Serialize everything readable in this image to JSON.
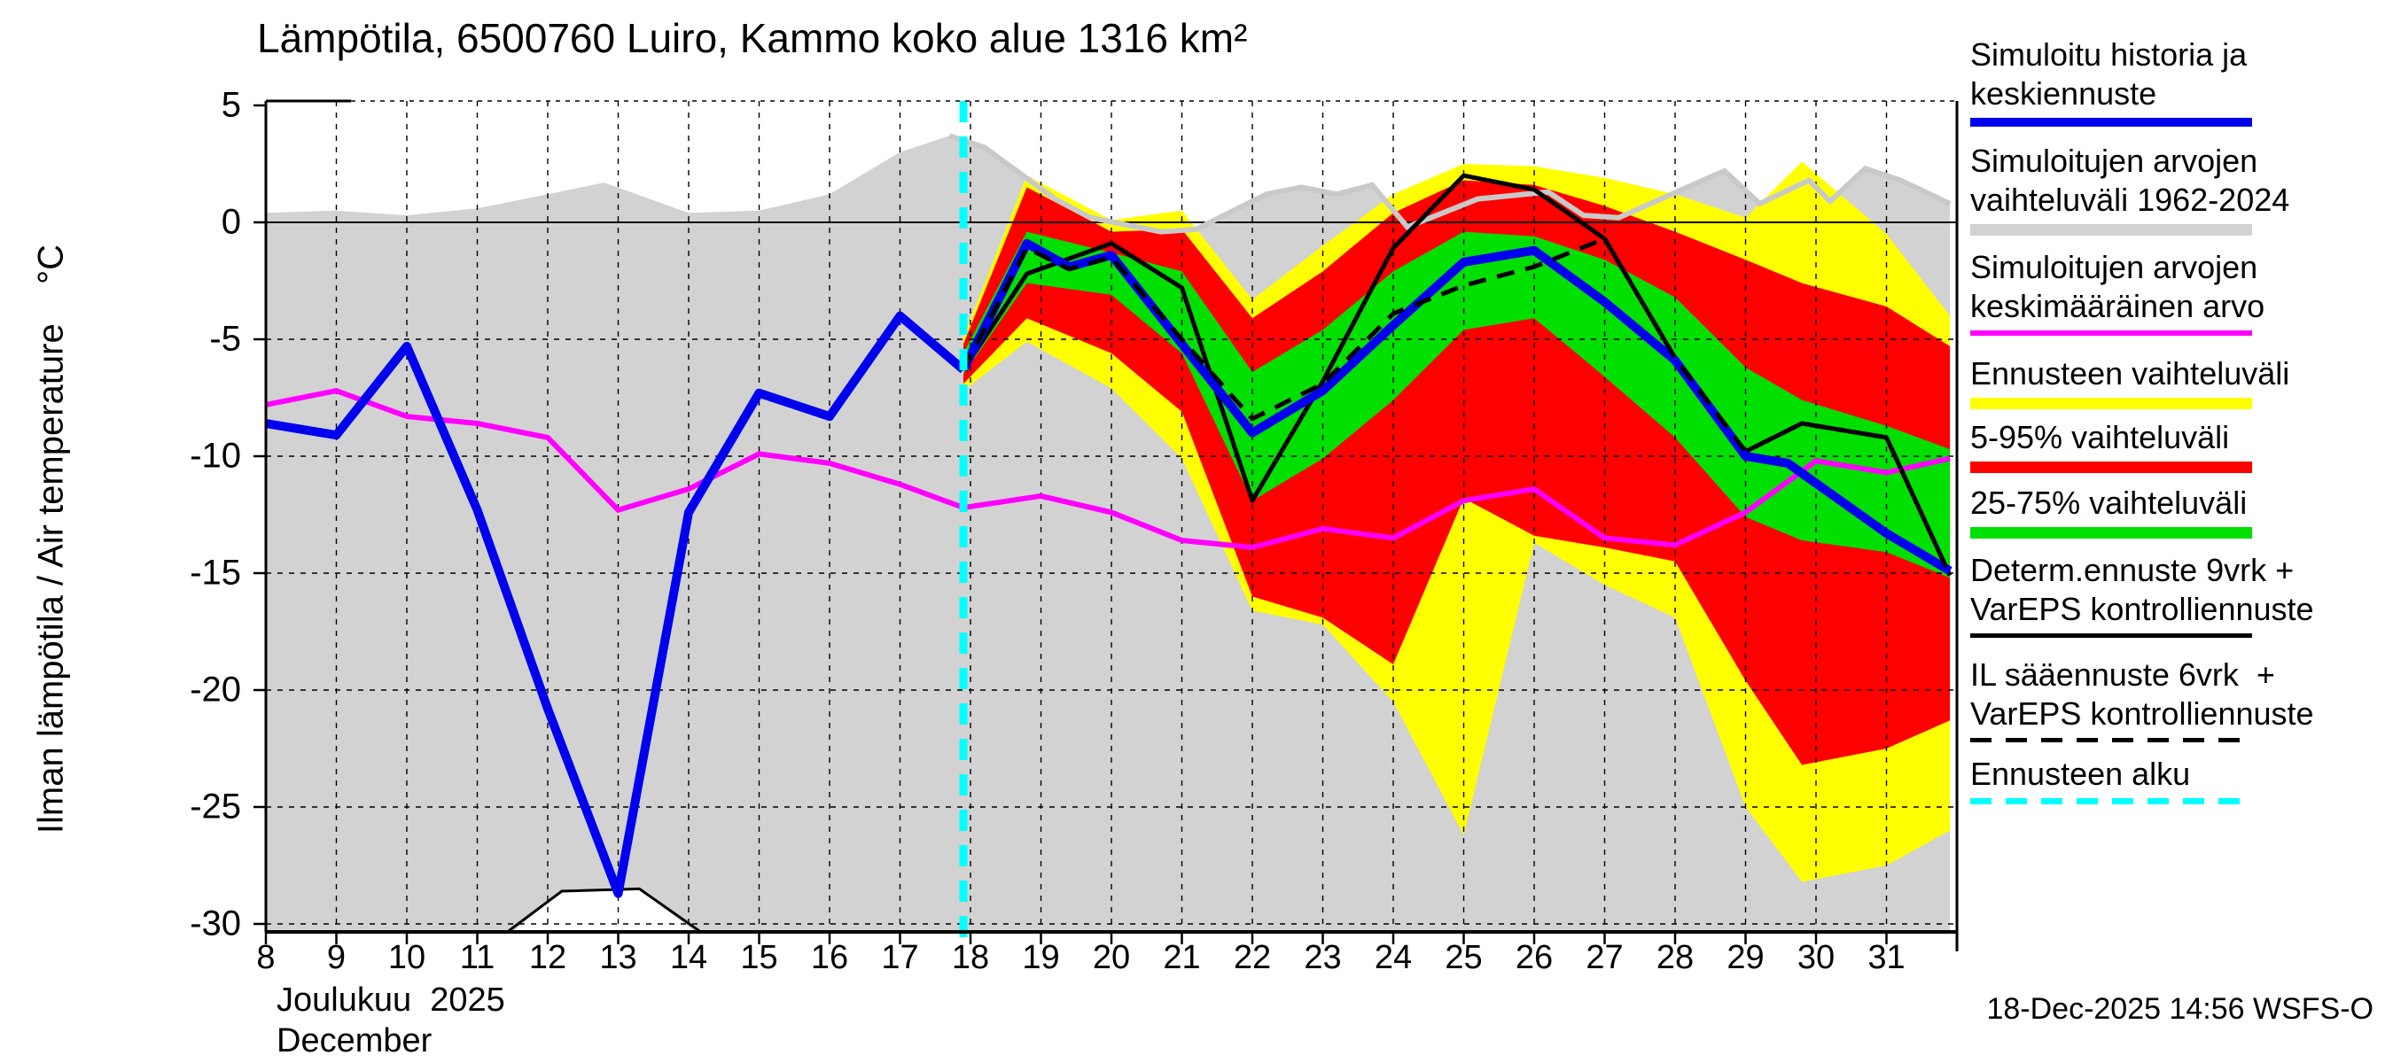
{
  "title": "Lämpötila, 6500760 Luiro, Kammo koko alue 1316 km²",
  "y_axis_label": "Ilman lämpötila / Air temperature    °C",
  "x_axis": {
    "month_fi": "Joulukuu  2025",
    "month_en": "December"
  },
  "footer": {
    "timestamp": "18-Dec-2025 14:56 WSFS-O"
  },
  "legend": {
    "position": "right",
    "items": [
      {
        "lines": [
          "Simuloitu historia ja",
          "keskiennuste"
        ],
        "swatch": "bar",
        "color": "#0000ee",
        "thickness": 10
      },
      {
        "lines": [
          "Simuloitujen arvojen",
          "vaihteluväli 1962-2024"
        ],
        "swatch": "bar",
        "color": "#d2d2d2",
        "thickness": 13
      },
      {
        "lines": [
          "Simuloitujen arvojen",
          "keskimääräinen arvo"
        ],
        "swatch": "bar",
        "color": "#ff00ff",
        "thickness": 6
      },
      {
        "lines": [
          "Ennusteen vaihteluväli"
        ],
        "swatch": "bar",
        "color": "#ffff00",
        "thickness": 13
      },
      {
        "lines": [
          "5-95% vaihteluväli"
        ],
        "swatch": "bar",
        "color": "#ff0000",
        "thickness": 13
      },
      {
        "lines": [
          "25-75% vaihteluväli"
        ],
        "swatch": "bar",
        "color": "#00e000",
        "thickness": 13
      },
      {
        "lines": [
          "Determ.ennuste 9vrk +",
          "VarEPS kontrolliennuste"
        ],
        "swatch": "bar",
        "color": "#000000",
        "thickness": 5
      },
      {
        "lines": [
          "IL sääennuste 6vrk  +",
          "VarEPS kontrolliennuste"
        ],
        "swatch": "dashed",
        "color": "#000000",
        "thickness": 5
      },
      {
        "lines": [
          "Ennusteen alku"
        ],
        "swatch": "dashed",
        "color": "#00ffff",
        "thickness": 7
      }
    ]
  },
  "chart_data": {
    "type": "line",
    "title": "Lämpötila, 6500760 Luiro, Kammo koko alue 1316 km²",
    "xlabel": "Joulukuu 2025 / December",
    "ylabel": "Ilman lämpötila / Air temperature °C",
    "xlim": [
      8,
      32
    ],
    "ylim": [
      -30.3,
      5.2
    ],
    "grid": true,
    "x_ticks": [
      8,
      9,
      10,
      11,
      12,
      13,
      14,
      15,
      16,
      17,
      18,
      19,
      20,
      21,
      22,
      23,
      24,
      25,
      26,
      27,
      28,
      29,
      30,
      31
    ],
    "y_ticks": [
      5,
      0,
      -5,
      -10,
      -15,
      -20,
      -25,
      -30
    ],
    "forecast_start_day": 17.9,
    "colors": {
      "history_mean": "#0000ee",
      "sim_range_band": "#d2d2d2",
      "sim_range_edge": "#c9c9c9",
      "sim_mean": "#ff00ff",
      "forecast_range": "#ffff00",
      "p5_95": "#ff0000",
      "p25_75": "#00e000",
      "deterministic": "#000000",
      "il_forecast": "#000000",
      "forecast_start": "#00ffff"
    },
    "series": [
      {
        "name": "Simuloitu historia ja keskiennuste (historia)",
        "type": "line",
        "color": "#0000ee",
        "points": [
          [
            8,
            -8.6
          ],
          [
            9,
            -9.1
          ],
          [
            10,
            -5.3
          ],
          [
            11,
            -12.3
          ],
          [
            12,
            -20.8
          ],
          [
            13,
            -28.7
          ],
          [
            14,
            -12.4
          ],
          [
            15,
            -7.3
          ],
          [
            16,
            -8.3
          ],
          [
            17,
            -4.0
          ],
          [
            17.9,
            -6.3
          ]
        ]
      },
      {
        "name": "Keskiennuste (forecast mean)",
        "type": "line",
        "color": "#0000ee",
        "points": [
          [
            17.9,
            -6.3
          ],
          [
            18.8,
            -0.9
          ],
          [
            19.4,
            -1.9
          ],
          [
            20,
            -1.4
          ],
          [
            21,
            -5.2
          ],
          [
            22,
            -9.0
          ],
          [
            23,
            -7.2
          ],
          [
            24,
            -4.4
          ],
          [
            25,
            -1.7
          ],
          [
            26,
            -1.2
          ],
          [
            27,
            -3.4
          ],
          [
            28,
            -5.9
          ],
          [
            29,
            -10.0
          ],
          [
            29.6,
            -10.3
          ],
          [
            31,
            -13.3
          ],
          [
            31.9,
            -14.9
          ]
        ]
      },
      {
        "name": "Simuloitujen arvojen keskimääräinen arvo",
        "type": "line",
        "color": "#ff00ff",
        "points": [
          [
            8,
            -7.8
          ],
          [
            9,
            -7.2
          ],
          [
            10,
            -8.3
          ],
          [
            11,
            -8.6
          ],
          [
            12,
            -9.2
          ],
          [
            13,
            -12.3
          ],
          [
            14,
            -11.4
          ],
          [
            15,
            -9.9
          ],
          [
            16,
            -10.3
          ],
          [
            17,
            -11.2
          ],
          [
            17.9,
            -12.2
          ],
          [
            19,
            -11.7
          ],
          [
            20,
            -12.4
          ],
          [
            21,
            -13.6
          ],
          [
            22,
            -13.9
          ],
          [
            23,
            -13.1
          ],
          [
            24,
            -13.5
          ],
          [
            25,
            -11.9
          ],
          [
            26,
            -11.4
          ],
          [
            27,
            -13.5
          ],
          [
            28,
            -13.8
          ],
          [
            29,
            -12.4
          ],
          [
            30,
            -10.2
          ],
          [
            31,
            -10.7
          ],
          [
            31.9,
            -10.1
          ]
        ]
      },
      {
        "name": "Determ.ennuste 9vrk + VarEPS kontrolliennuste",
        "type": "line",
        "color": "#000000",
        "points": [
          [
            17.9,
            -6.3
          ],
          [
            18.8,
            -2.2
          ],
          [
            20,
            -0.9
          ],
          [
            21,
            -2.8
          ],
          [
            22,
            -11.9
          ],
          [
            23,
            -6.8
          ],
          [
            24,
            -1.1
          ],
          [
            25,
            2.0
          ],
          [
            26,
            1.4
          ],
          [
            27,
            -0.7
          ],
          [
            28,
            -5.8
          ],
          [
            29,
            -9.8
          ],
          [
            29.8,
            -8.6
          ],
          [
            31,
            -9.2
          ],
          [
            31.9,
            -15.1
          ]
        ]
      },
      {
        "name": "IL sääennuste 6vrk + VarEPS kontrolliennuste",
        "type": "dashed-line",
        "color": "#000000",
        "points": [
          [
            17.9,
            -6.3
          ],
          [
            18.8,
            -1.1
          ],
          [
            19.4,
            -2.0
          ],
          [
            20,
            -1.5
          ],
          [
            21,
            -5.0
          ],
          [
            22,
            -8.4
          ],
          [
            23,
            -6.9
          ],
          [
            24,
            -3.9
          ],
          [
            25,
            -2.7
          ],
          [
            26,
            -1.9
          ],
          [
            27,
            -0.7
          ],
          [
            28,
            -5.8
          ],
          [
            29,
            -9.8
          ],
          [
            29.8,
            -8.6
          ],
          [
            31,
            -9.2
          ],
          [
            31.9,
            -15.1
          ]
        ]
      }
    ],
    "bands": [
      {
        "name": "Simuloitujen arvojen vaihteluväli 1962-2024",
        "color": "#d2d2d2",
        "top": [
          [
            8,
            0.4
          ],
          [
            9,
            0.5
          ],
          [
            10,
            0.3
          ],
          [
            11,
            0.6
          ],
          [
            12,
            1.2
          ],
          [
            12.8,
            1.7
          ],
          [
            14,
            0.4
          ],
          [
            15,
            0.5
          ],
          [
            16,
            1.2
          ],
          [
            17,
            3.0
          ],
          [
            17.7,
            3.7
          ],
          [
            18.2,
            3.2
          ],
          [
            19.2,
            1.0
          ],
          [
            19.7,
            0.2
          ],
          [
            20.7,
            -0.4
          ],
          [
            21.2,
            -0.3
          ],
          [
            22.2,
            1.2
          ],
          [
            22.7,
            1.5
          ],
          [
            23.2,
            1.2
          ],
          [
            23.7,
            1.6
          ],
          [
            24.2,
            -0.2
          ],
          [
            25.2,
            1.0
          ],
          [
            26.2,
            1.3
          ],
          [
            26.7,
            0.3
          ],
          [
            27.2,
            0.2
          ],
          [
            28.7,
            2.2
          ],
          [
            29.2,
            0.8
          ],
          [
            29.9,
            1.8
          ],
          [
            30.2,
            0.9
          ],
          [
            30.7,
            2.3
          ],
          [
            31.2,
            1.8
          ],
          [
            31.9,
            0.8
          ]
        ],
        "bottom": [
          [
            8,
            -30.6
          ],
          [
            11.4,
            -30.6
          ],
          [
            12.2,
            -28.6
          ],
          [
            13.3,
            -28.5
          ],
          [
            14.2,
            -30.6
          ],
          [
            31.9,
            -30.6
          ]
        ]
      },
      {
        "name": "Ennusteen vaihteluväli",
        "color": "#ffff00",
        "x": [
          17.9,
          18.8,
          20,
          21,
          22,
          23,
          24,
          25,
          26,
          27,
          28,
          29,
          29.8,
          31,
          31.9
        ],
        "hi": [
          -4.9,
          2.0,
          0.1,
          0.5,
          -3.3,
          -1.0,
          1.2,
          2.5,
          2.4,
          1.9,
          1.2,
          0.2,
          2.6,
          -0.5,
          -4.0
        ],
        "lo": [
          -7.2,
          -5.1,
          -7.1,
          -10.1,
          -16.6,
          -17.2,
          -20.5,
          -26.2,
          -13.7,
          -15.5,
          -16.9,
          -25.0,
          -28.2,
          -27.5,
          -26.0
        ]
      },
      {
        "name": "5-95% vaihteluväli",
        "color": "#ff0000",
        "x": [
          17.9,
          18.8,
          20,
          21,
          22,
          23,
          24,
          25,
          26,
          27,
          28,
          29,
          29.8,
          31,
          31.9
        ],
        "hi": [
          -5.2,
          1.5,
          -0.4,
          -0.3,
          -4.1,
          -2.1,
          0.4,
          1.8,
          1.6,
          0.7,
          -0.4,
          -1.6,
          -2.6,
          -3.6,
          -5.3
        ],
        "lo": [
          -6.9,
          -4.1,
          -5.6,
          -8.1,
          -16.0,
          -16.9,
          -18.9,
          -11.8,
          -13.4,
          -13.9,
          -14.5,
          -19.6,
          -23.2,
          -22.5,
          -21.3
        ]
      },
      {
        "name": "25-75% vaihteluväli",
        "color": "#00e000",
        "x": [
          17.9,
          18.8,
          20,
          21,
          22,
          23,
          24,
          25,
          26,
          27,
          28,
          29,
          29.8,
          31,
          31.9
        ],
        "hi": [
          -5.6,
          -0.4,
          -1.3,
          -2.1,
          -6.4,
          -4.6,
          -2.1,
          -0.4,
          -0.6,
          -1.6,
          -3.2,
          -6.2,
          -7.6,
          -8.7,
          -9.7
        ],
        "lo": [
          -6.5,
          -2.6,
          -3.1,
          -5.6,
          -11.9,
          -10.1,
          -7.6,
          -4.6,
          -4.1,
          -6.6,
          -9.2,
          -12.6,
          -13.6,
          -14.1,
          -15.2
        ]
      }
    ]
  }
}
